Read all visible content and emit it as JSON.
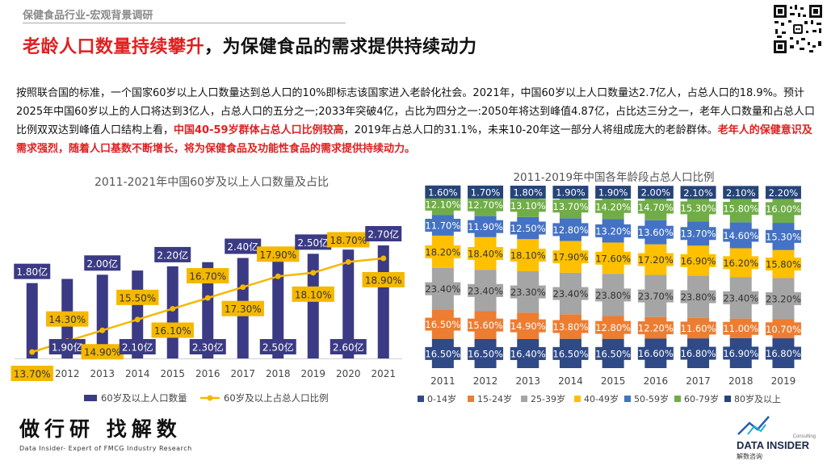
{
  "header": {
    "breadcrumb": "保健食品行业-宏观背景调研",
    "headline_highlight": "老龄人口数量持续攀升",
    "headline_rest": "，为保健食品的需求提供持续动力"
  },
  "body": {
    "part1": "按照联合国的标准，一个国家60岁以上人口数量达到总人口的10%即标志该国家进入老龄化社会。2021年，中国60岁以上人口数量达2.7亿人，占总人口的18.9%。预计2025年中国60岁以上的人口将达到3亿人，占总人口的五分之一;2033年突破4亿，占比为四分之一:2050年将达到峰值4.87亿，占比达三分之一，老年人口数量和占总人口比例双双达到峰值人口结构上看，",
    "red1": "中国40-59岁群体占总人口比例较高",
    "part2": "，2019年占总人口的31.1%，未来10-20年这一部分人将组成庞大的老龄群体。",
    "red2": "老年人的保健意识及需求强烈，随着人口基数不断增长，将为保健食品及功能性食品的需求提供持续动力。"
  },
  "footer": {
    "brand_cn": "做行研 找解数",
    "brand_en": "Data Insider- Expert of FMCG Industry Research",
    "logo_small": "Consulting",
    "logo_main": "DATA INSIDER",
    "logo_cn": "解数咨询"
  },
  "chart_data": [
    {
      "type": "bar",
      "title": "2011-2021年中国60岁及以上人口数量及占比",
      "categories": [
        "2011",
        "2012",
        "2013",
        "2014",
        "2015",
        "2016",
        "2017",
        "2018",
        "2019",
        "2020",
        "2021"
      ],
      "series": [
        {
          "name": "60岁及以上人口数量",
          "type": "bar",
          "color": "#3b3a84",
          "values": [
            1.8,
            1.9,
            2.0,
            2.1,
            2.2,
            2.3,
            2.4,
            2.5,
            2.5,
            2.6,
            2.7
          ],
          "labels": [
            "1.80亿",
            "1.90亿",
            "2.00亿",
            "2.10亿",
            "2.20亿",
            "2.30亿",
            "2.40亿",
            "2.50亿",
            "2.50亿",
            "2.60亿",
            "2.70亿"
          ]
        },
        {
          "name": "60岁及以上占总人口比例",
          "type": "line",
          "color": "#f5b800",
          "values": [
            13.7,
            14.3,
            14.9,
            15.5,
            16.1,
            16.7,
            17.3,
            17.9,
            18.1,
            18.7,
            18.9
          ],
          "labels": [
            "13.70%",
            "14.30%",
            "14.90%",
            "15.50%",
            "16.10%",
            "16.70%",
            "17.30%",
            "17.90%",
            "18.10%",
            "18.70%",
            "18.90%"
          ]
        }
      ],
      "legend": "bottom"
    },
    {
      "type": "bar",
      "stacked": true,
      "title": "2011-2019年中国各年龄段占总人口比例",
      "categories": [
        "2011",
        "2012",
        "2013",
        "2014",
        "2015",
        "2016",
        "2017",
        "2018",
        "2019"
      ],
      "series": [
        {
          "name": "0-14岁",
          "color": "#2f4a86",
          "values": [
            16.5,
            16.5,
            16.4,
            16.5,
            16.5,
            16.6,
            16.8,
            16.9,
            16.8
          ]
        },
        {
          "name": "15-24岁",
          "color": "#ed7d31",
          "values": [
            16.5,
            15.6,
            14.9,
            13.8,
            12.8,
            12.2,
            11.6,
            11.0,
            10.7
          ]
        },
        {
          "name": "25-39岁",
          "color": "#a5a5a5",
          "values": [
            23.4,
            23.4,
            23.3,
            23.4,
            23.8,
            23.7,
            23.8,
            23.4,
            23.2
          ]
        },
        {
          "name": "40-49岁",
          "color": "#ffc000",
          "values": [
            18.2,
            18.4,
            18.1,
            17.9,
            17.6,
            17.2,
            16.9,
            16.2,
            15.8
          ]
        },
        {
          "name": "50-59岁",
          "color": "#4472c4",
          "values": [
            11.7,
            11.9,
            12.5,
            12.8,
            13.2,
            13.6,
            13.7,
            14.6,
            15.3
          ]
        },
        {
          "name": "60-79岁",
          "color": "#70ad47",
          "values": [
            12.1,
            12.7,
            13.1,
            13.7,
            14.2,
            14.7,
            15.3,
            15.8,
            16.0
          ]
        },
        {
          "name": "80岁及以上",
          "color": "#264478",
          "values": [
            1.6,
            1.7,
            1.8,
            1.9,
            1.9,
            2.0,
            2.1,
            2.1,
            2.2
          ]
        }
      ],
      "legend": "bottom"
    }
  ]
}
